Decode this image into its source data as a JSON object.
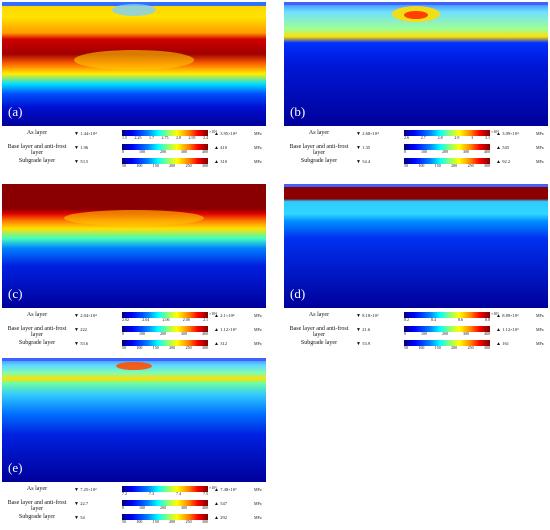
{
  "panels": [
    {
      "label": "(a)",
      "rows": [
        {
          "name": "As layer",
          "min": "1.44×10⁴",
          "max": "3.95×10⁴",
          "unit": "MPa",
          "exp": "×10⁴",
          "ticks": [
            "1.5",
            "2.25",
            "1.7",
            "2.75",
            "2.8",
            "2.95",
            "2.4"
          ]
        },
        {
          "name": "Base layer and anti-frost layer",
          "min": "1.96",
          "max": "410",
          "unit": "MPa",
          "exp": "",
          "ticks": [
            "0",
            "100",
            "200",
            "300",
            "400"
          ]
        },
        {
          "name": "Subgrade layer",
          "min": "53.5",
          "max": "310",
          "unit": "MPa",
          "exp": "",
          "ticks": [
            "50",
            "100",
            "150",
            "200",
            "250",
            "300"
          ]
        }
      ]
    },
    {
      "label": "(b)",
      "rows": [
        {
          "name": "As layer",
          "min": "2.68×10⁴",
          "max": "3.09×10⁴",
          "unit": "MPa",
          "exp": "×10⁴",
          "ticks": [
            "2.6",
            "2.7",
            "2.8",
            "2.9",
            "3",
            "3.1"
          ]
        },
        {
          "name": "Base layer and anti-frost layer",
          "min": "1.35",
          "max": "545",
          "unit": "MPa",
          "exp": "",
          "ticks": [
            "0",
            "100",
            "200",
            "300",
            "400"
          ]
        },
        {
          "name": "Subgrade layer",
          "min": "54.4",
          "max": "92.2",
          "unit": "MPa",
          "exp": "",
          "ticks": [
            "50",
            "100",
            "150",
            "200",
            "250",
            "300"
          ]
        }
      ]
    },
    {
      "label": "(c)",
      "rows": [
        {
          "name": "As layer",
          "min": "2.04×10⁴",
          "max": "2.1×10⁴",
          "unit": "MPa",
          "exp": "×10⁴",
          "ticks": [
            "2.02",
            "2.04",
            "2.06",
            "2.08",
            "2.1"
          ]
        },
        {
          "name": "Base layer and anti-frost layer",
          "min": "222",
          "max": "1.12×10³",
          "unit": "MPa",
          "exp": "",
          "ticks": [
            "0",
            "100",
            "200",
            "300",
            "400"
          ]
        },
        {
          "name": "Subgrade layer",
          "min": "53.6",
          "max": "312",
          "unit": "MPa",
          "exp": "",
          "ticks": [
            "50",
            "100",
            "150",
            "200",
            "250",
            "300"
          ]
        }
      ]
    },
    {
      "label": "(d)",
      "rows": [
        {
          "name": "As layer",
          "min": "8.18×10³",
          "max": "8.89×10³",
          "unit": "MPa",
          "exp": "×10³",
          "ticks": [
            "8.2",
            "8.4",
            "8.6",
            "8.8"
          ]
        },
        {
          "name": "Base layer and anti-frost layer",
          "min": "21.6",
          "max": "1.12×10³",
          "unit": "MPa",
          "exp": "",
          "ticks": [
            "0",
            "100",
            "200",
            "300",
            "400"
          ]
        },
        {
          "name": "Subgrade layer",
          "min": "53.9",
          "max": "161",
          "unit": "MPa",
          "exp": "",
          "ticks": [
            "50",
            "100",
            "150",
            "200",
            "250",
            "300"
          ]
        }
      ]
    },
    {
      "label": "(e)",
      "rows": [
        {
          "name": "As layer",
          "min": "7.25×10³",
          "max": "7.48×10³",
          "unit": "MPa",
          "exp": "×10³",
          "ticks": [
            "7.2",
            "7.3",
            "7.4",
            "7.5"
          ]
        },
        {
          "name": "Base layer and anti-frost layer",
          "min": "22.7",
          "max": "547",
          "unit": "MPa",
          "exp": "",
          "ticks": [
            "0",
            "100",
            "200",
            "300",
            "400"
          ]
        },
        {
          "name": "Subgrade layer",
          "min": "54",
          "max": "292",
          "unit": "MPa",
          "exp": "",
          "ticks": [
            "50",
            "100",
            "150",
            "200",
            "250",
            "300"
          ]
        }
      ]
    }
  ]
}
